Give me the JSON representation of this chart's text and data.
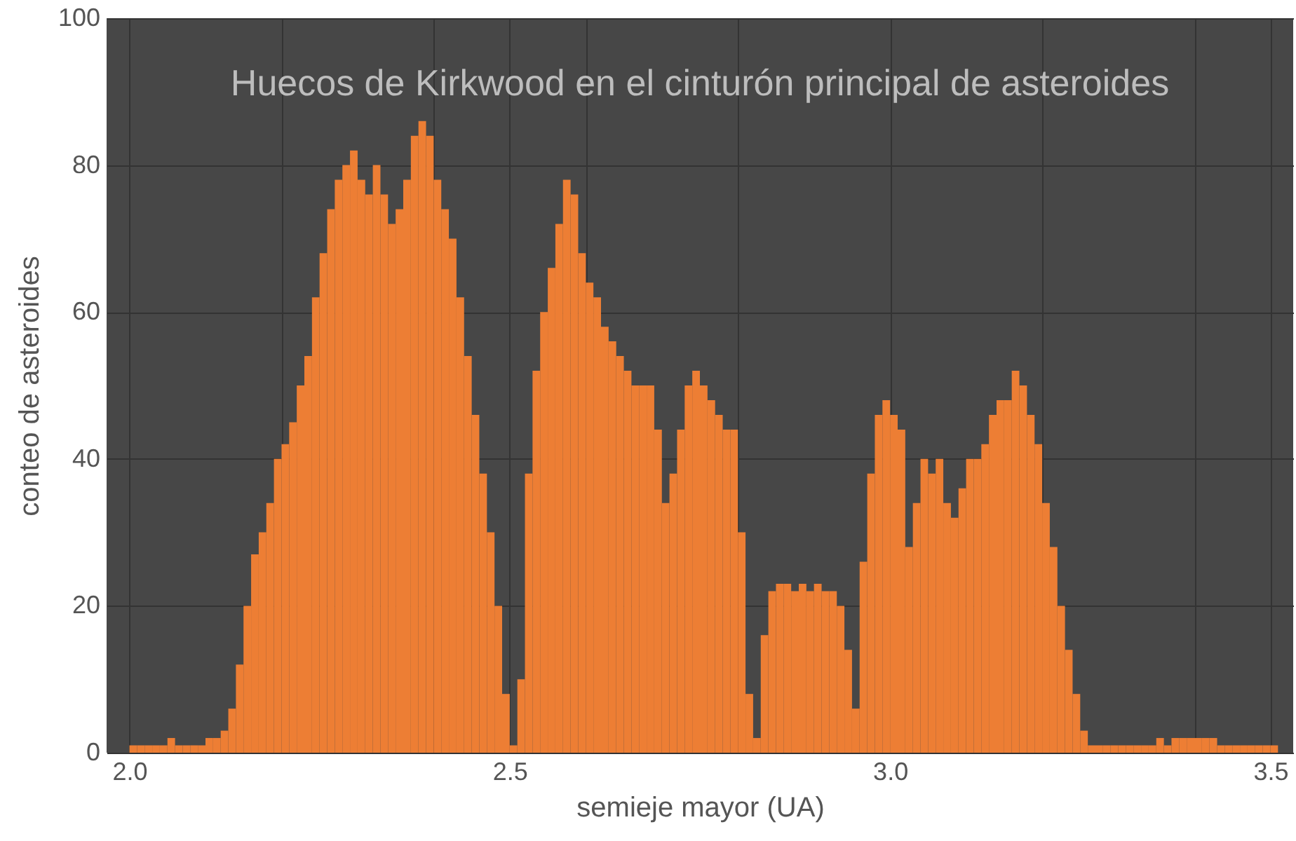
{
  "chart_data": {
    "type": "histogram",
    "title": "Huecos de Kirkwood en el cinturón principal de asteroides",
    "xlabel": "semieje mayor (UA)",
    "ylabel": "conteo de asteroides",
    "color": "#ed7e34",
    "bins": [
      2.0,
      2.01,
      2.02,
      2.03,
      2.04,
      2.05,
      2.06,
      2.07,
      2.08,
      2.09,
      2.1,
      2.11,
      2.12,
      2.13,
      2.14,
      2.15,
      2.16,
      2.17,
      2.18,
      2.19,
      2.2,
      2.21,
      2.22,
      2.23,
      2.24,
      2.25,
      2.26,
      2.27,
      2.28,
      2.29,
      2.3,
      2.31,
      2.32,
      2.33,
      2.34,
      2.35,
      2.36,
      2.37,
      2.38,
      2.39,
      2.4,
      2.41,
      2.42,
      2.43,
      2.44,
      2.45,
      2.46,
      2.47,
      2.48,
      2.49,
      2.5,
      2.51,
      2.52,
      2.53,
      2.54,
      2.55,
      2.56,
      2.57,
      2.58,
      2.59,
      2.6,
      2.61,
      2.62,
      2.63,
      2.64,
      2.65,
      2.66,
      2.67,
      2.68,
      2.69,
      2.7,
      2.71,
      2.72,
      2.73,
      2.74,
      2.75,
      2.76,
      2.77,
      2.78,
      2.79,
      2.8,
      2.81,
      2.82,
      2.83,
      2.84,
      2.85,
      2.86,
      2.87,
      2.88,
      2.89,
      2.9,
      2.91,
      2.92,
      2.93,
      2.94,
      2.95,
      2.96,
      2.97,
      2.98,
      2.99,
      3.0,
      3.01,
      3.02,
      3.03,
      3.04,
      3.05,
      3.06,
      3.07,
      3.08,
      3.09,
      3.1,
      3.11,
      3.12,
      3.13,
      3.14,
      3.15,
      3.16,
      3.17,
      3.18,
      3.19,
      3.2,
      3.21,
      3.22,
      3.23,
      3.24,
      3.25,
      3.26,
      3.27,
      3.28,
      3.29,
      3.3,
      3.31,
      3.32,
      3.33,
      3.34,
      3.35,
      3.36,
      3.37,
      3.38,
      3.39,
      3.4,
      3.41,
      3.42,
      3.43,
      3.44,
      3.45,
      3.46,
      3.47,
      3.48,
      3.49,
      3.5,
      3.51
    ],
    "values": [
      1,
      1,
      1,
      1,
      1,
      2,
      1,
      1,
      1,
      1,
      2,
      2,
      3,
      6,
      12,
      20,
      27,
      30,
      34,
      40,
      42,
      45,
      50,
      54,
      62,
      68,
      74,
      78,
      80,
      82,
      78,
      76,
      80,
      76,
      72,
      74,
      78,
      84,
      86,
      84,
      78,
      74,
      70,
      62,
      54,
      46,
      38,
      30,
      20,
      8,
      1,
      10,
      38,
      52,
      60,
      66,
      72,
      78,
      76,
      68,
      64,
      62,
      58,
      56,
      54,
      52,
      50,
      50,
      50,
      44,
      34,
      38,
      44,
      50,
      52,
      50,
      48,
      46,
      44,
      44,
      30,
      8,
      2,
      16,
      22,
      23,
      23,
      22,
      23,
      22,
      23,
      22,
      22,
      20,
      14,
      6,
      26,
      38,
      46,
      48,
      46,
      44,
      28,
      34,
      40,
      38,
      40,
      34,
      32,
      36,
      40,
      40,
      42,
      46,
      48,
      48,
      52,
      50,
      46,
      42,
      34,
      28,
      20,
      14,
      8,
      3,
      1,
      1,
      1,
      1,
      1,
      1,
      1,
      1,
      1,
      2,
      1,
      2,
      2,
      2,
      2,
      2,
      2,
      1,
      1,
      1,
      1,
      1,
      1,
      1,
      1
    ],
    "xlim": [
      1.97,
      3.53
    ],
    "ylim": [
      0,
      100
    ],
    "xticks": [
      {
        "value": 2,
        "label": "2.0"
      },
      {
        "value": 2.2,
        "label": null
      },
      {
        "value": 2.4,
        "label": null
      },
      2.5,
      {
        "value": 2.6,
        "label": null
      },
      {
        "value": 2.8,
        "label": null
      },
      {
        "value": 3,
        "label": "3.0"
      },
      {
        "value": 3.2,
        "label": null
      },
      {
        "value": 3.4,
        "label": null
      },
      3.5
    ],
    "yticks": [
      0,
      20,
      40,
      60,
      80,
      100
    ],
    "grid": true
  }
}
